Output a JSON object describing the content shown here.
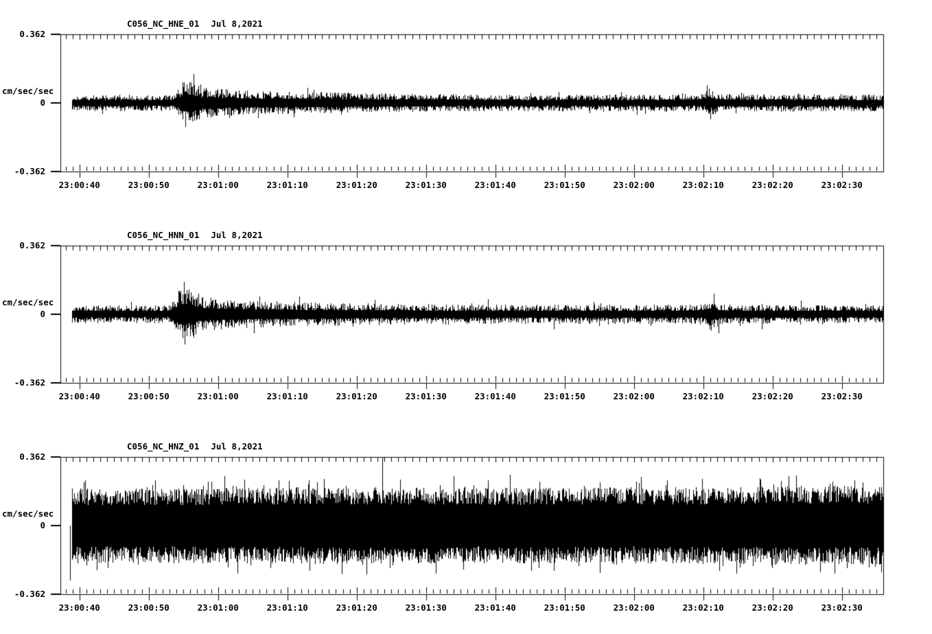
{
  "figure": {
    "background": "#ffffff",
    "trace_color": "#000000",
    "panel_count": 3
  },
  "chart_data": [
    {
      "type": "line",
      "title": "C056_NC_HNE_01",
      "date": "Jul 8,2021",
      "ylabel": "cm/sec/sec",
      "ylim": [
        -0.362,
        0.362
      ],
      "y_tick_labels": [
        "0.362",
        "0",
        "-0.362"
      ],
      "x_tick_labels": [
        "23:00:40",
        "23:00:50",
        "23:01:00",
        "23:01:10",
        "23:01:20",
        "23:01:30",
        "23:01:40",
        "23:01:50",
        "23:02:00",
        "23:02:10",
        "23:02:20",
        "23:02:30"
      ],
      "tick_interval_seconds": 10,
      "minor_tick_seconds": 1,
      "grid": false,
      "legend": null,
      "waveform": {
        "seed": 101,
        "envelope": [
          [
            0,
            0.12
          ],
          [
            0.138,
            0.12
          ],
          [
            0.148,
            0.32
          ],
          [
            0.155,
            0.34
          ],
          [
            0.17,
            0.24
          ],
          [
            0.22,
            0.18
          ],
          [
            0.3,
            0.16
          ],
          [
            0.45,
            0.13
          ],
          [
            0.6,
            0.12
          ],
          [
            0.78,
            0.13
          ],
          [
            0.787,
            0.22
          ],
          [
            0.8,
            0.13
          ],
          [
            1,
            0.12
          ]
        ],
        "core_floor": 0.35,
        "shape_exp": 1.7,
        "spike_prob": 0.045,
        "spike_gain": 1.55,
        "events": [
          [
            0.15,
            0.3
          ],
          [
            0.152,
            -0.35
          ],
          [
            0.157,
            0.3
          ],
          [
            0.163,
            -0.26
          ],
          [
            0.17,
            0.27
          ],
          [
            0.205,
            -0.22
          ],
          [
            0.24,
            -0.22
          ],
          [
            0.3,
            0.22
          ],
          [
            0.786,
            0.26
          ],
          [
            0.79,
            -0.24
          ]
        ]
      }
    },
    {
      "type": "line",
      "title": "C056_NC_HNN_01",
      "date": "Jul 8,2021",
      "ylabel": "cm/sec/sec",
      "ylim": [
        -0.362,
        0.362
      ],
      "y_tick_labels": [
        "0.362",
        "0",
        "-0.362"
      ],
      "x_tick_labels": [
        "23:00:40",
        "23:00:50",
        "23:01:00",
        "23:01:10",
        "23:01:20",
        "23:01:30",
        "23:01:40",
        "23:01:50",
        "23:02:00",
        "23:02:10",
        "23:02:20",
        "23:02:30"
      ],
      "tick_interval_seconds": 10,
      "minor_tick_seconds": 1,
      "grid": false,
      "legend": null,
      "waveform": {
        "seed": 202,
        "envelope": [
          [
            0,
            0.13
          ],
          [
            0.13,
            0.13
          ],
          [
            0.143,
            0.34
          ],
          [
            0.152,
            0.4
          ],
          [
            0.17,
            0.26
          ],
          [
            0.22,
            0.2
          ],
          [
            0.32,
            0.17
          ],
          [
            0.5,
            0.14
          ],
          [
            0.78,
            0.14
          ],
          [
            0.79,
            0.24
          ],
          [
            0.805,
            0.14
          ],
          [
            1,
            0.13
          ]
        ],
        "core_floor": 0.35,
        "shape_exp": 1.7,
        "spike_prob": 0.05,
        "spike_gain": 1.55,
        "events": [
          [
            0.146,
            0.34
          ],
          [
            0.151,
            -0.44
          ],
          [
            0.156,
            0.36
          ],
          [
            0.162,
            -0.34
          ],
          [
            0.168,
            0.3
          ],
          [
            0.235,
            -0.28
          ],
          [
            0.242,
            0.26
          ],
          [
            0.52,
            0.22
          ],
          [
            0.6,
            -0.22
          ],
          [
            0.794,
            0.3
          ],
          [
            0.8,
            -0.28
          ],
          [
            0.852,
            -0.22
          ],
          [
            0.9,
            0.2
          ]
        ]
      }
    },
    {
      "type": "line",
      "title": "C056_NC_HNZ_01",
      "date": "Jul 8,2021",
      "ylabel": "cm/sec/sec",
      "ylim": [
        -0.362,
        0.362
      ],
      "y_tick_labels": [
        "0.362",
        "0",
        "-0.362"
      ],
      "x_tick_labels": [
        "23:00:40",
        "23:00:50",
        "23:01:00",
        "23:01:10",
        "23:01:20",
        "23:01:30",
        "23:01:40",
        "23:01:50",
        "23:02:00",
        "23:02:10",
        "23:02:20",
        "23:02:30"
      ],
      "tick_interval_seconds": 10,
      "minor_tick_seconds": 1,
      "grid": false,
      "legend": null,
      "waveform": {
        "seed": 303,
        "envelope": [
          [
            0,
            0.56
          ],
          [
            0.05,
            0.54
          ],
          [
            0.3,
            0.56
          ],
          [
            0.5,
            0.55
          ],
          [
            0.75,
            0.56
          ],
          [
            0.9,
            0.58
          ],
          [
            1,
            0.57
          ]
        ],
        "core_floor": 0.55,
        "shape_exp": 1.0,
        "spike_prob": 0.1,
        "spike_gain": 1.35,
        "events": [
          [
            0.012,
            -0.8
          ],
          [
            0.03,
            0.66
          ],
          [
            0.115,
            0.66
          ],
          [
            0.199,
            0.72
          ],
          [
            0.32,
            0.68
          ],
          [
            0.391,
            1.0
          ],
          [
            0.4,
            -0.62
          ],
          [
            0.456,
            -0.7
          ],
          [
            0.52,
            0.66
          ],
          [
            0.6,
            -0.66
          ],
          [
            0.7,
            0.64
          ],
          [
            0.78,
            0.68
          ],
          [
            0.865,
            -0.62
          ],
          [
            0.885,
            0.72
          ],
          [
            0.923,
            -0.68
          ],
          [
            0.965,
            0.66
          ],
          [
            0.99,
            -0.6
          ]
        ]
      }
    }
  ]
}
